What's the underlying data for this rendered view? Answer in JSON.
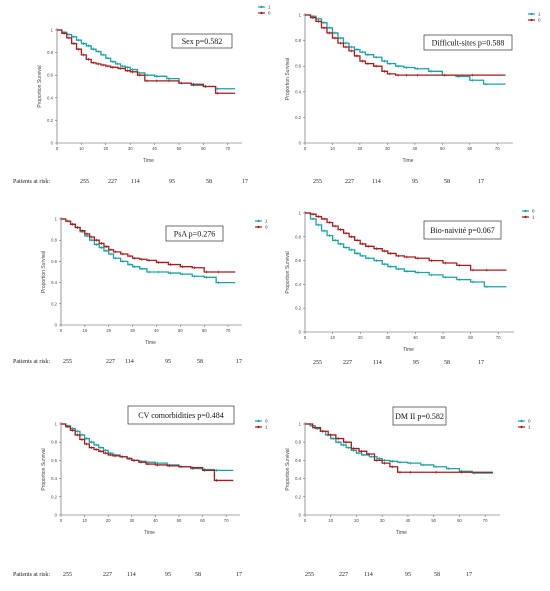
{
  "colors": {
    "teal": "#1aa3a3",
    "red": "#a81c1c"
  },
  "chart_data": [
    {
      "type": "line",
      "title": "Sex p=0.582",
      "xlabel": "Time",
      "ylabel": "Proportion Survival",
      "xlim": [
        0,
        75
      ],
      "ylim": [
        0,
        1
      ],
      "xticks": [
        "0",
        "10",
        "20",
        "30",
        "40",
        "50",
        "60",
        "70"
      ],
      "yticks": [
        "0",
        "0.2",
        "0.4",
        "0.6",
        "0.8",
        "1"
      ],
      "legend": "top-right",
      "risk_label": "Patients at risk:",
      "at_risk": [
        "255",
        "227",
        "114",
        "95",
        "58",
        "17"
      ],
      "series": [
        {
          "name": "1",
          "color": "#1aa3a3",
          "x": [
            0,
            2,
            4,
            6,
            8,
            10,
            12,
            14,
            16,
            18,
            20,
            22,
            24,
            26,
            28,
            30,
            33,
            36,
            40,
            45,
            50,
            55,
            60,
            65,
            73
          ],
          "y": [
            1,
            0.98,
            0.96,
            0.94,
            0.91,
            0.88,
            0.86,
            0.83,
            0.81,
            0.78,
            0.75,
            0.72,
            0.7,
            0.68,
            0.67,
            0.65,
            0.62,
            0.6,
            0.59,
            0.57,
            0.53,
            0.51,
            0.5,
            0.48,
            0.48
          ]
        },
        {
          "name": "0",
          "color": "#a81c1c",
          "x": [
            0,
            2,
            4,
            6,
            8,
            10,
            12,
            14,
            16,
            18,
            20,
            22,
            25,
            28,
            30,
            33,
            36,
            40,
            45,
            50,
            55,
            60,
            65,
            73
          ],
          "y": [
            1,
            0.97,
            0.93,
            0.88,
            0.83,
            0.78,
            0.74,
            0.71,
            0.7,
            0.69,
            0.68,
            0.67,
            0.66,
            0.64,
            0.63,
            0.6,
            0.55,
            0.55,
            0.55,
            0.53,
            0.52,
            0.5,
            0.44,
            0.44
          ]
        }
      ]
    },
    {
      "type": "line",
      "title": "Difficult-sites p=0.588",
      "xlabel": "Time",
      "ylabel": "Proportion Survival",
      "xlim": [
        0,
        75
      ],
      "ylim": [
        0,
        1
      ],
      "xticks": [
        "0",
        "10",
        "20",
        "30",
        "40",
        "50",
        "60",
        "70"
      ],
      "yticks": [
        "0",
        "0.2",
        "0.4",
        "0.6",
        "0.8",
        "1"
      ],
      "legend": "top-right",
      "risk_label": "Patients at risk:",
      "at_risk": [
        "255",
        "227",
        "114",
        "95",
        "58",
        "17"
      ],
      "series": [
        {
          "name": "1",
          "color": "#1aa3a3",
          "x": [
            0,
            2,
            4,
            6,
            8,
            10,
            12,
            14,
            16,
            18,
            20,
            22,
            25,
            28,
            30,
            33,
            36,
            40,
            45,
            50,
            55,
            60,
            65,
            73
          ],
          "y": [
            1,
            0.99,
            0.97,
            0.94,
            0.9,
            0.86,
            0.82,
            0.78,
            0.75,
            0.73,
            0.71,
            0.69,
            0.67,
            0.64,
            0.62,
            0.6,
            0.59,
            0.58,
            0.56,
            0.53,
            0.52,
            0.49,
            0.46,
            0.46
          ]
        },
        {
          "name": "0",
          "color": "#a81c1c",
          "x": [
            0,
            2,
            4,
            6,
            8,
            10,
            12,
            14,
            16,
            18,
            20,
            22,
            25,
            28,
            30,
            33,
            36,
            40,
            50,
            60,
            73
          ],
          "y": [
            1,
            0.98,
            0.95,
            0.9,
            0.86,
            0.82,
            0.78,
            0.75,
            0.72,
            0.68,
            0.64,
            0.62,
            0.6,
            0.56,
            0.54,
            0.53,
            0.53,
            0.53,
            0.53,
            0.53,
            0.53
          ]
        }
      ]
    },
    {
      "type": "line",
      "title": "PsA p=0.276",
      "xlabel": "Time",
      "ylabel": "Proportion Survival",
      "xlim": [
        0,
        75
      ],
      "ylim": [
        0,
        1
      ],
      "xticks": [
        "0",
        "10",
        "20",
        "30",
        "40",
        "50",
        "60",
        "70"
      ],
      "yticks": [
        "0",
        "0.2",
        "0.4",
        "0.6",
        "0.8",
        "1"
      ],
      "legend": "top-right",
      "risk_label": "Patients at risk:",
      "at_risk": [
        "255",
        "227",
        "114",
        "95",
        "58",
        "17"
      ],
      "series": [
        {
          "name": "1",
          "color": "#1aa3a3",
          "x": [
            0,
            2,
            4,
            6,
            8,
            10,
            12,
            14,
            16,
            18,
            20,
            22,
            25,
            28,
            30,
            33,
            36,
            40,
            45,
            50,
            55,
            60,
            65,
            73
          ],
          "y": [
            1,
            0.98,
            0.95,
            0.92,
            0.88,
            0.84,
            0.8,
            0.76,
            0.73,
            0.7,
            0.67,
            0.63,
            0.6,
            0.57,
            0.55,
            0.53,
            0.5,
            0.5,
            0.49,
            0.48,
            0.46,
            0.45,
            0.4,
            0.4
          ]
        },
        {
          "name": "0",
          "color": "#a81c1c",
          "x": [
            0,
            2,
            4,
            6,
            8,
            10,
            12,
            14,
            16,
            18,
            20,
            22,
            25,
            28,
            30,
            33,
            36,
            40,
            45,
            50,
            55,
            60,
            65,
            73
          ],
          "y": [
            1,
            0.98,
            0.95,
            0.92,
            0.89,
            0.86,
            0.83,
            0.8,
            0.77,
            0.74,
            0.71,
            0.69,
            0.67,
            0.65,
            0.63,
            0.62,
            0.61,
            0.59,
            0.57,
            0.55,
            0.54,
            0.5,
            0.5,
            0.5
          ]
        }
      ]
    },
    {
      "type": "line",
      "title": "Bio-naivité p=0.067",
      "xlabel": "Time",
      "ylabel": "Proportion Survival",
      "xlim": [
        0,
        75
      ],
      "ylim": [
        0,
        1
      ],
      "xticks": [
        "0",
        "10",
        "20",
        "30",
        "40",
        "50",
        "60",
        "70"
      ],
      "yticks": [
        "0",
        "0.2",
        "0.4",
        "0.6",
        "0.8",
        "1"
      ],
      "legend": "top-right",
      "risk_label": "Patients at risk:",
      "at_risk": [
        "255",
        "227",
        "114",
        "95",
        "58",
        "17"
      ],
      "series": [
        {
          "name": "0",
          "color": "#1aa3a3",
          "x": [
            0,
            2,
            4,
            6,
            8,
            10,
            12,
            14,
            16,
            18,
            20,
            22,
            25,
            28,
            30,
            33,
            36,
            40,
            45,
            50,
            55,
            60,
            65,
            73
          ],
          "y": [
            1,
            0.95,
            0.9,
            0.85,
            0.81,
            0.77,
            0.74,
            0.71,
            0.69,
            0.66,
            0.64,
            0.62,
            0.6,
            0.57,
            0.55,
            0.53,
            0.51,
            0.5,
            0.48,
            0.46,
            0.44,
            0.42,
            0.38,
            0.38
          ]
        },
        {
          "name": "1",
          "color": "#a81c1c",
          "x": [
            0,
            2,
            4,
            6,
            8,
            10,
            12,
            14,
            16,
            18,
            20,
            22,
            25,
            28,
            30,
            33,
            36,
            40,
            45,
            50,
            55,
            60,
            65,
            73
          ],
          "y": [
            1,
            0.99,
            0.97,
            0.95,
            0.92,
            0.89,
            0.86,
            0.83,
            0.8,
            0.77,
            0.74,
            0.72,
            0.7,
            0.68,
            0.66,
            0.64,
            0.63,
            0.62,
            0.6,
            0.58,
            0.56,
            0.52,
            0.52,
            0.52
          ]
        }
      ]
    },
    {
      "type": "line",
      "title": "CV comorbidities p=0.484",
      "xlabel": "Time",
      "ylabel": "Proportion Survival",
      "xlim": [
        0,
        75
      ],
      "ylim": [
        0,
        1
      ],
      "xticks": [
        "0",
        "10",
        "20",
        "30",
        "40",
        "50",
        "60",
        "70"
      ],
      "yticks": [
        "0",
        "0.2",
        "0.4",
        "0.6",
        "0.8",
        "1"
      ],
      "legend": "top-right",
      "risk_label": "Patients at risk:",
      "at_risk": [
        "255",
        "227",
        "114",
        "95",
        "58",
        "17"
      ],
      "series": [
        {
          "name": "0",
          "color": "#1aa3a3",
          "x": [
            0,
            2,
            4,
            6,
            8,
            10,
            12,
            14,
            16,
            18,
            20,
            22,
            25,
            28,
            30,
            33,
            36,
            40,
            45,
            50,
            55,
            60,
            65,
            73
          ],
          "y": [
            1,
            0.98,
            0.95,
            0.92,
            0.88,
            0.84,
            0.8,
            0.77,
            0.74,
            0.71,
            0.68,
            0.66,
            0.64,
            0.62,
            0.6,
            0.59,
            0.58,
            0.57,
            0.55,
            0.53,
            0.51,
            0.5,
            0.49,
            0.49
          ]
        },
        {
          "name": "1",
          "color": "#a81c1c",
          "x": [
            0,
            2,
            4,
            6,
            8,
            10,
            12,
            14,
            16,
            18,
            20,
            22,
            25,
            28,
            30,
            33,
            36,
            40,
            45,
            50,
            55,
            60,
            65,
            73
          ],
          "y": [
            1,
            0.97,
            0.93,
            0.88,
            0.83,
            0.78,
            0.74,
            0.72,
            0.7,
            0.68,
            0.66,
            0.65,
            0.64,
            0.62,
            0.6,
            0.58,
            0.56,
            0.55,
            0.54,
            0.53,
            0.52,
            0.49,
            0.38,
            0.38
          ]
        }
      ]
    },
    {
      "type": "line",
      "title": "DM II p=0.582",
      "xlabel": "Time",
      "ylabel": "Proportion Survival",
      "xlim": [
        0,
        75
      ],
      "ylim": [
        0,
        1
      ],
      "xticks": [
        "0",
        "10",
        "20",
        "30",
        "40",
        "50",
        "60",
        "70"
      ],
      "yticks": [
        "0",
        "0.2",
        "0.4",
        "0.6",
        "0.8",
        "1"
      ],
      "legend": "top-right",
      "risk_label": "Patients at risk:",
      "at_risk": [
        "255",
        "227",
        "114",
        "95",
        "58",
        "17"
      ],
      "series": [
        {
          "name": "0",
          "color": "#1aa3a3",
          "x": [
            0,
            2,
            4,
            6,
            8,
            10,
            12,
            14,
            16,
            18,
            20,
            22,
            25,
            28,
            30,
            33,
            36,
            40,
            45,
            50,
            55,
            60,
            65,
            73
          ],
          "y": [
            1,
            0.98,
            0.95,
            0.92,
            0.88,
            0.84,
            0.8,
            0.77,
            0.74,
            0.71,
            0.68,
            0.66,
            0.64,
            0.62,
            0.6,
            0.59,
            0.58,
            0.57,
            0.55,
            0.53,
            0.51,
            0.48,
            0.46,
            0.46
          ]
        },
        {
          "name": "1",
          "color": "#a81c1c",
          "x": [
            0,
            3,
            6,
            9,
            12,
            15,
            18,
            21,
            24,
            27,
            30,
            33,
            36,
            40,
            50,
            60,
            73
          ],
          "y": [
            1,
            0.96,
            0.92,
            0.88,
            0.84,
            0.8,
            0.73,
            0.7,
            0.67,
            0.6,
            0.57,
            0.53,
            0.47,
            0.47,
            0.47,
            0.47,
            0.47
          ]
        }
      ]
    }
  ]
}
